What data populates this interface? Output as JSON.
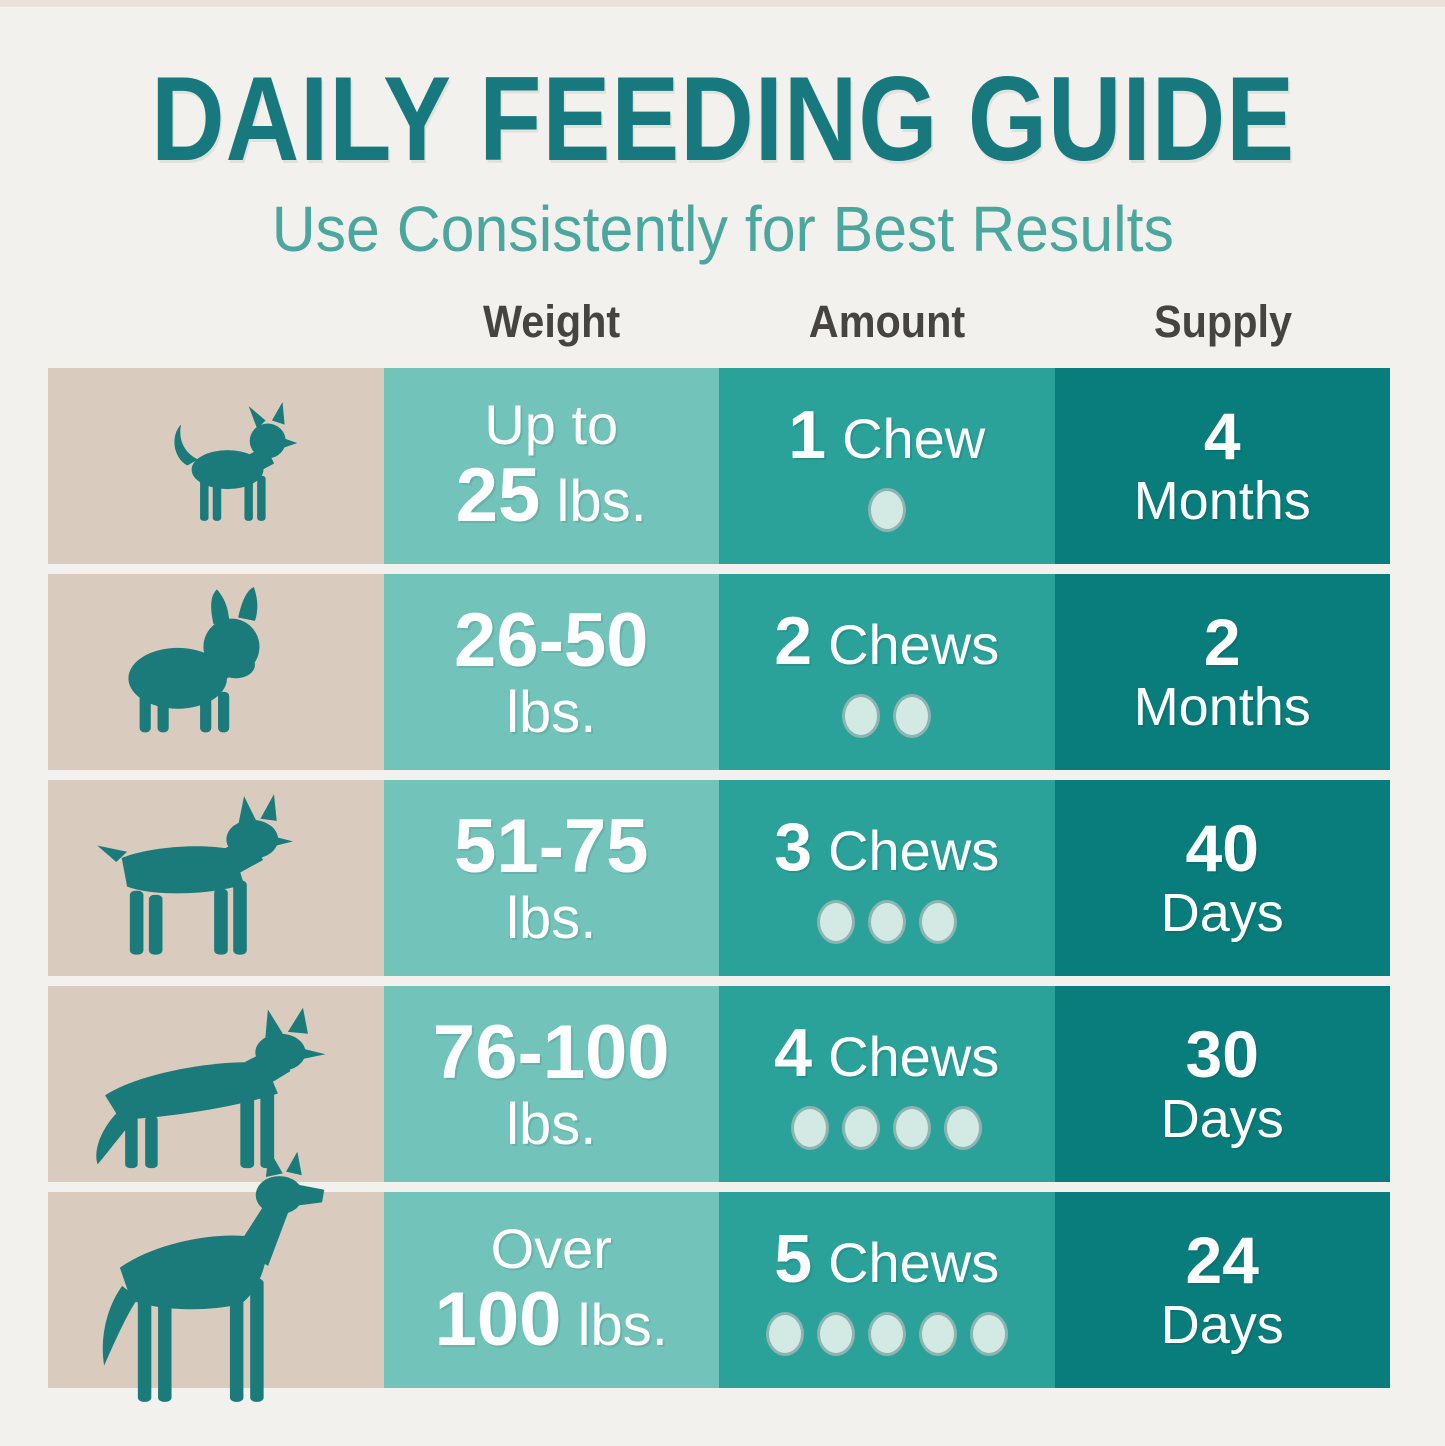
{
  "title": "DAILY FEEDING GUIDE",
  "subtitle": "Use Consistently for Best Results",
  "table": {
    "headers": [
      "Weight",
      "Amount",
      "Supply"
    ],
    "rows": [
      {
        "dog": "chihuahua",
        "weight_top": "Up to",
        "weight_bold": "25",
        "weight_rest": "lbs.",
        "amount_num": "1",
        "amount_label": "Chew",
        "chew_dots": 1,
        "supply_num": "4",
        "supply_unit": "Months"
      },
      {
        "dog": "french-bulldog",
        "weight_bold": "26-50",
        "weight_rest": "lbs.",
        "amount_num": "2",
        "amount_label": "Chews",
        "chew_dots": 2,
        "supply_num": "2",
        "supply_unit": "Months"
      },
      {
        "dog": "boxer",
        "weight_bold": "51-75",
        "weight_rest": "lbs.",
        "amount_num": "3",
        "amount_label": "Chews",
        "chew_dots": 3,
        "supply_num": "40",
        "supply_unit": "Days"
      },
      {
        "dog": "german-shepherd",
        "weight_bold": "76-100",
        "weight_rest": "lbs.",
        "amount_num": "4",
        "amount_label": "Chews",
        "chew_dots": 4,
        "supply_num": "30",
        "supply_unit": "Days"
      },
      {
        "dog": "great-dane",
        "weight_top": "Over",
        "weight_bold": "100",
        "weight_rest": "lbs.",
        "amount_num": "5",
        "amount_label": "Chews",
        "chew_dots": 5,
        "supply_num": "24",
        "supply_unit": "Days"
      }
    ]
  },
  "colors": {
    "background": "#f2f1ed",
    "title": "#17797e",
    "subtitle": "#4ba79e",
    "header_text": "#474440",
    "dog_column_bg": "#d9ccbf",
    "weight_column_bg": "#72c3b9",
    "amount_column_bg": "#2aa199",
    "supply_column_bg": "#097d7b",
    "dog_silhouette": "#1b7b7a",
    "chew_dot": "#d3e9e3",
    "cell_text": "#ffffff"
  }
}
